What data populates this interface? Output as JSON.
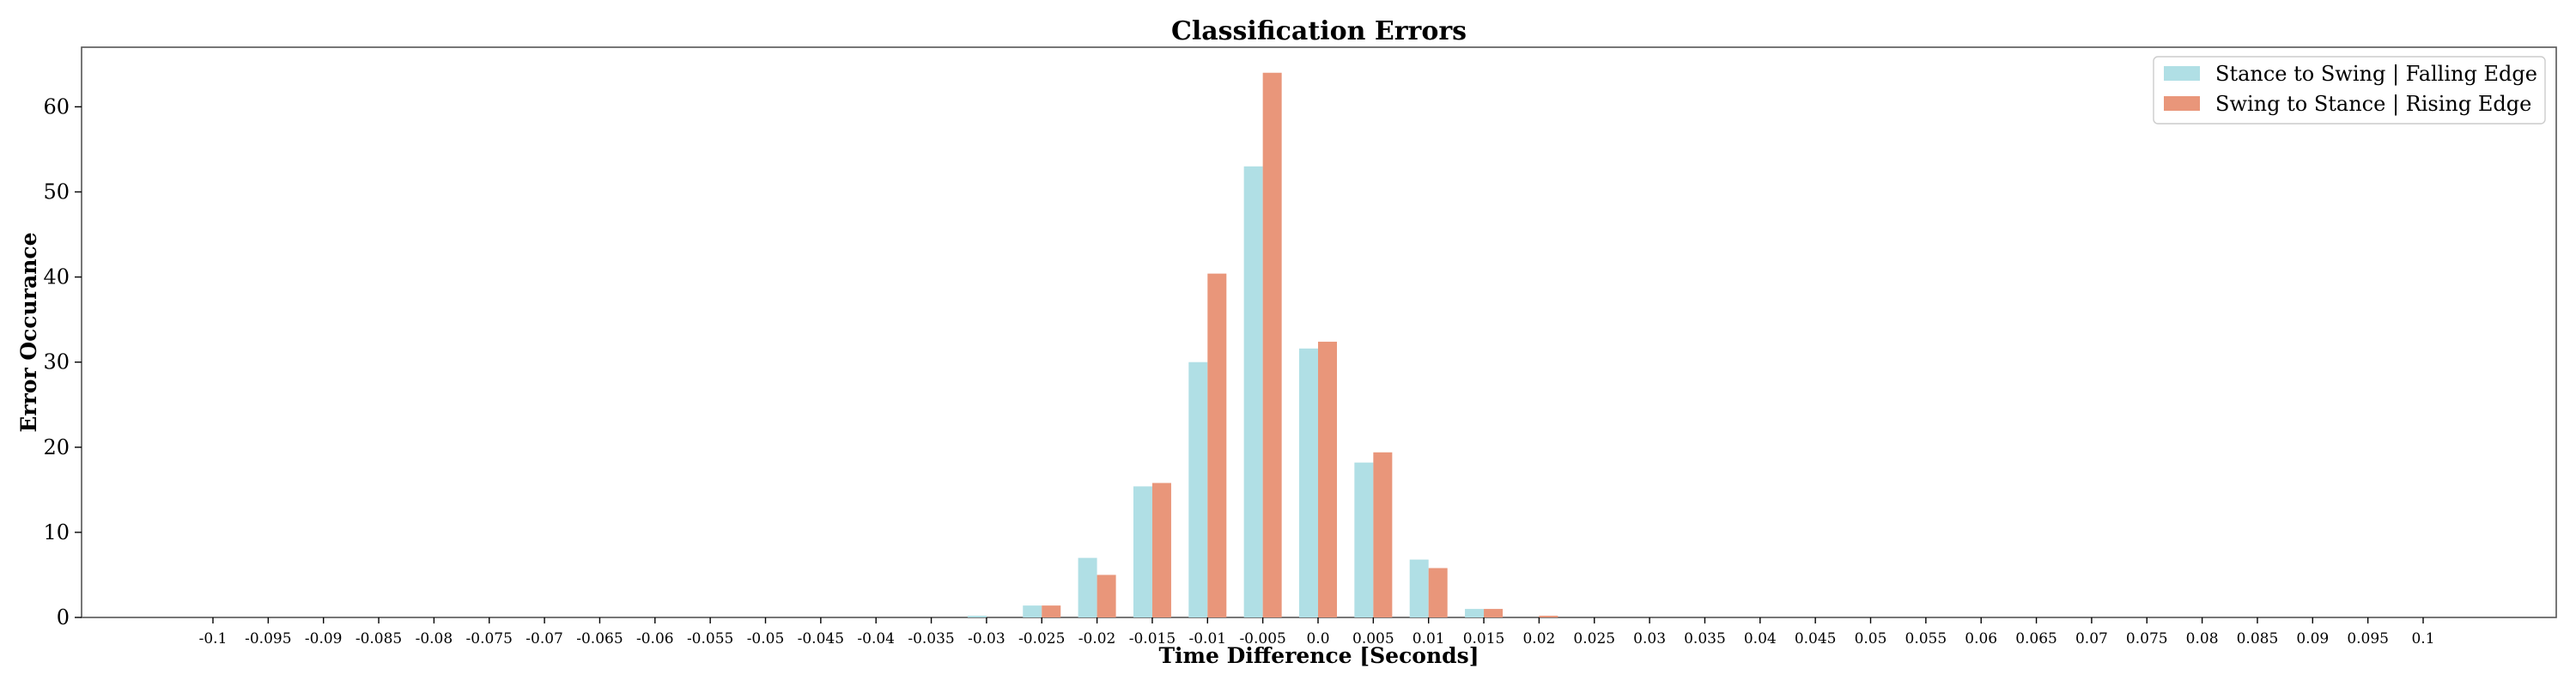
{
  "chart_data": {
    "type": "bar",
    "title": "Classification Errors",
    "xlabel": "Time Difference [Seconds]",
    "ylabel": "Error Occurance",
    "ylim": [
      0,
      67
    ],
    "yticks": [
      0,
      10,
      20,
      30,
      40,
      50,
      60
    ],
    "legend_placement": "top-right",
    "grid": false,
    "categories": [
      "-0.1",
      "-0.095",
      "-0.09",
      "-0.085",
      "-0.08",
      "-0.075",
      "-0.07",
      "-0.065",
      "-0.06",
      "-0.055",
      "-0.05",
      "-0.045",
      "-0.04",
      "-0.035",
      "-0.03",
      "-0.025",
      "-0.02",
      "-0.015",
      "-0.01",
      "-0.005",
      "0.0",
      "0.005",
      "0.01",
      "0.015",
      "0.02",
      "0.025",
      "0.03",
      "0.035",
      "0.04",
      "0.045",
      "0.05",
      "0.055",
      "0.06",
      "0.065",
      "0.07",
      "0.075",
      "0.08",
      "0.085",
      "0.09",
      "0.095",
      "0.1"
    ],
    "series": [
      {
        "name": "Stance to Swing | Falling Edge",
        "color": "#b0dfe5",
        "values": [
          0,
          0,
          0,
          0,
          0,
          0,
          0,
          0,
          0,
          0,
          0,
          0,
          0,
          0,
          0.2,
          1.4,
          7.0,
          15.4,
          30.0,
          53.0,
          31.6,
          18.2,
          6.8,
          1.0,
          0,
          0,
          0,
          0,
          0,
          0,
          0,
          0,
          0,
          0,
          0,
          0,
          0,
          0,
          0,
          0,
          0
        ]
      },
      {
        "name": "Swing to Stance | Rising Edge",
        "color": "#e9967a",
        "values": [
          0,
          0,
          0,
          0,
          0,
          0,
          0,
          0,
          0,
          0,
          0,
          0,
          0,
          0,
          0,
          1.4,
          5.0,
          15.8,
          40.4,
          64.0,
          32.4,
          19.4,
          5.8,
          1.0,
          0.2,
          0,
          0,
          0,
          0,
          0,
          0,
          0,
          0,
          0,
          0,
          0,
          0,
          0,
          0,
          0,
          0
        ]
      }
    ]
  }
}
